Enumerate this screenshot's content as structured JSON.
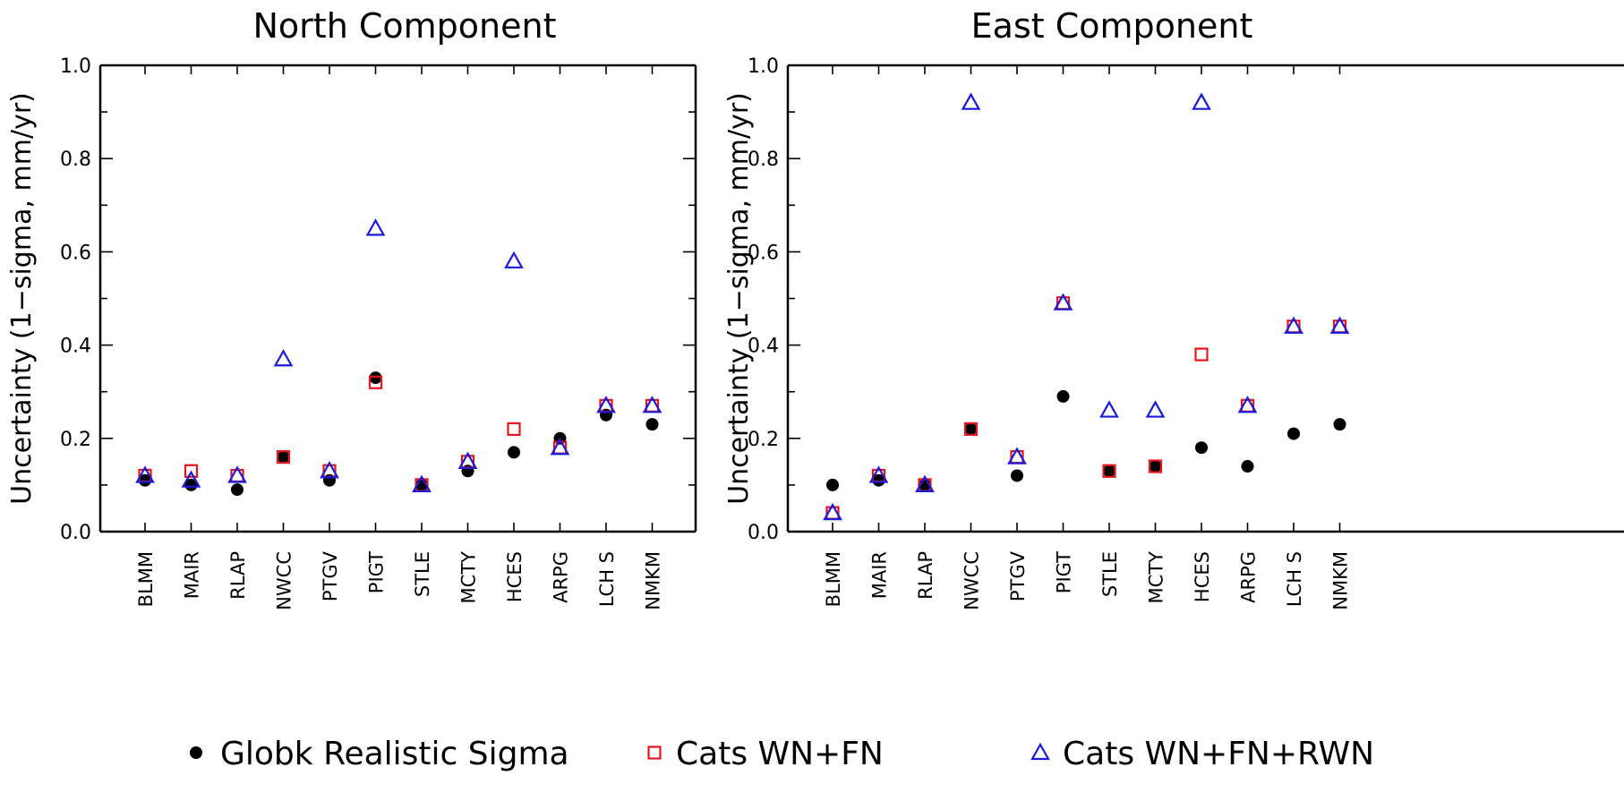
{
  "chart_data": [
    {
      "type": "scatter",
      "title": "North Component",
      "ylabel": "Uncertainty (1−sigma, mm/yr)",
      "xlabel": "",
      "ylim": [
        0.0,
        1.0
      ],
      "yticks": [
        "0.0",
        "0.2",
        "0.4",
        "0.6",
        "0.8",
        "1.0"
      ],
      "categories": [
        "BLMM",
        "MAIR",
        "RLAP",
        "NWCC",
        "PTGV",
        "PIGT",
        "STLE",
        "MCTY",
        "HCES",
        "ARPG",
        "LCH S",
        "NMKM"
      ],
      "series": [
        {
          "name": "Globk Realistic Sigma",
          "marker": "filled-circle",
          "color": "#000000",
          "values": [
            0.11,
            0.1,
            0.09,
            0.16,
            0.11,
            0.33,
            0.1,
            0.13,
            0.17,
            0.2,
            0.25,
            0.23
          ]
        },
        {
          "name": "Cats WN+FN",
          "marker": "open-square",
          "color": "#e8141b",
          "values": [
            0.12,
            0.13,
            0.12,
            0.16,
            0.13,
            0.32,
            0.1,
            0.15,
            0.22,
            0.18,
            0.27,
            0.27
          ]
        },
        {
          "name": "Cats WN+FN+RWN",
          "marker": "open-triangle",
          "color": "#1a1adc",
          "values": [
            0.12,
            0.11,
            0.12,
            0.37,
            0.13,
            0.65,
            0.1,
            0.15,
            0.58,
            0.18,
            0.27,
            0.27
          ]
        }
      ]
    },
    {
      "type": "scatter",
      "title": "East Component",
      "ylabel": "Uncertainty (1−sigma, mm/yr)",
      "xlabel": "",
      "ylim": [
        0.0,
        1.0
      ],
      "yticks": [
        "0.0",
        "0.2",
        "0.4",
        "0.6",
        "0.8",
        "1.0"
      ],
      "categories": [
        "BLMM",
        "MAIR",
        "RLAP",
        "NWCC",
        "PTGV",
        "PIGT",
        "STLE",
        "MCTY",
        "HCES",
        "ARPG",
        "LCH S",
        "NMKM"
      ],
      "series": [
        {
          "name": "Globk Realistic Sigma",
          "marker": "filled-circle",
          "color": "#000000",
          "values": [
            0.1,
            0.11,
            0.1,
            0.22,
            0.12,
            0.29,
            0.13,
            0.14,
            0.18,
            0.14,
            0.21,
            0.23
          ]
        },
        {
          "name": "Cats WN+FN",
          "marker": "open-square",
          "color": "#e8141b",
          "values": [
            0.04,
            0.12,
            0.1,
            0.22,
            0.16,
            0.49,
            0.13,
            0.14,
            0.38,
            0.27,
            0.44,
            0.44
          ]
        },
        {
          "name": "Cats WN+FN+RWN",
          "marker": "open-triangle",
          "color": "#1a1adc",
          "values": [
            0.04,
            0.12,
            0.1,
            0.92,
            0.16,
            0.49,
            0.26,
            0.26,
            0.92,
            0.27,
            0.44,
            0.44
          ]
        }
      ]
    }
  ],
  "legend": {
    "placement": "bottom",
    "items": [
      {
        "label": "Globk Realistic Sigma",
        "marker": "filled-circle",
        "color": "#000000"
      },
      {
        "label": "Cats WN+FN",
        "marker": "open-square",
        "color": "#e8141b"
      },
      {
        "label": "Cats WN+FN+RWN",
        "marker": "open-triangle",
        "color": "#1a1adc"
      }
    ]
  }
}
